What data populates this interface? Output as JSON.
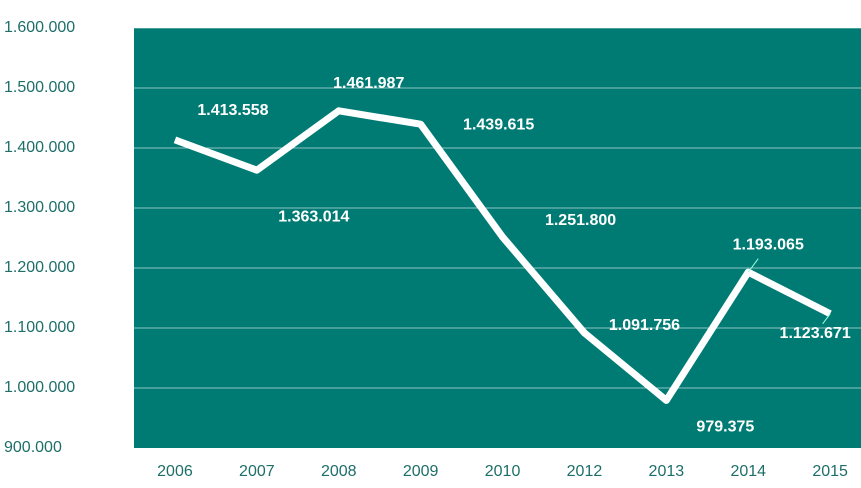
{
  "chart_data": {
    "type": "line",
    "categories": [
      "2006",
      "2007",
      "2008",
      "2009",
      "2010",
      "2012",
      "2013",
      "2014",
      "2015"
    ],
    "series": [
      {
        "name": null,
        "color": "#ffffff",
        "values": [
          1413558,
          1363014,
          1461987,
          1439615,
          1251800,
          1091756,
          979375,
          1193065,
          1123671
        ],
        "value_labels": [
          "1.413.558",
          "1.363.014",
          "1.461.987",
          "1.439.615",
          "1.251.800",
          "1.091.756",
          "979.375",
          "1.193.065",
          "1.123.671"
        ]
      }
    ],
    "ylim": [
      900000,
      1600000
    ],
    "yticks": [
      {
        "value": 900000,
        "label": "900.000"
      },
      {
        "value": 1000000,
        "label": "1.000.000"
      },
      {
        "value": 1100000,
        "label": "1.100.000"
      },
      {
        "value": 1200000,
        "label": "1.200.000"
      },
      {
        "value": 1300000,
        "label": "1.300.000"
      },
      {
        "value": 1400000,
        "label": "1.400.000"
      },
      {
        "value": 1500000,
        "label": "1.500.000"
      },
      {
        "value": 1600000,
        "label": "1.600.000"
      }
    ],
    "grid": true,
    "plot_color": "#007b73"
  }
}
